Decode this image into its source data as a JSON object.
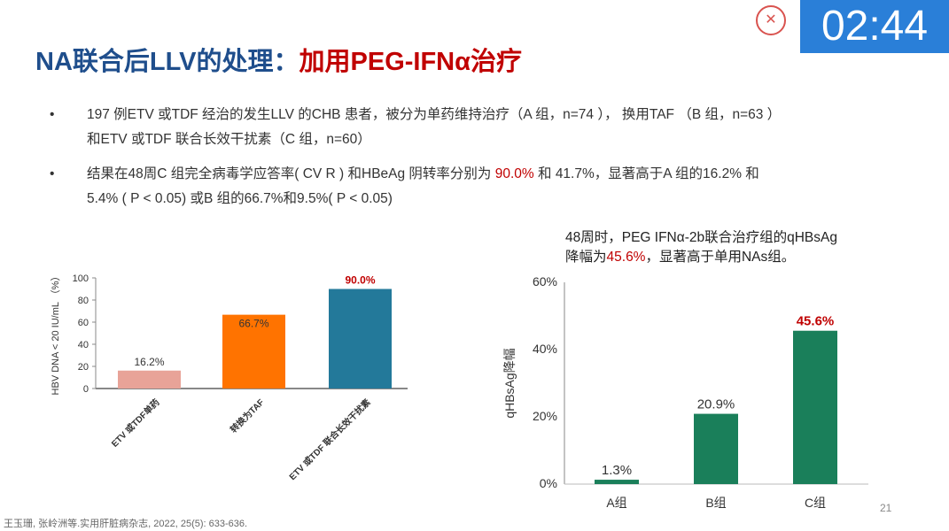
{
  "timer": "02:44",
  "title": {
    "main": "NA联合后LLV的处理：",
    "highlight": "加用PEG-IFNα治疗"
  },
  "bullets": [
    {
      "line1": "197 例ETV 或TDF 经治的发生LLV 的CHB 患者，被分为单药维持治疗（A 组，n=74 ），  换用TAF  （B 组，n=63 ）",
      "line2": "和ETV 或TDF 联合长效干扰素（C 组，n=60）"
    },
    {
      "pre": "结果在48周C 组完全病毒学应答率( CV R ) 和HBeAg 阴转率分别为 ",
      "hl": "90.0%",
      "post": " 和 41.7%，显著高于A 组的16.2% 和",
      "line2": "5.4% ( P < 0.05) 或B 组的66.7%和9.5%( P < 0.05)"
    }
  ],
  "note": {
    "line1": "48周时，PEG IFNα-2b联合治疗组的qHBsAg",
    "pre": "降幅为",
    "hl": "45.6%",
    "post": "，显著高于单用NAs组。"
  },
  "footnote": "王玉珊, 张岭洲等.实用肝脏病杂志, 2022, 25(5): 633-636.",
  "page_number": "21",
  "chart_data": [
    {
      "type": "bar",
      "ylabel": "HBV DNA < 20 IU/mL （%）",
      "ylim": [
        0,
        100
      ],
      "yticks": [
        "0",
        "20",
        "40",
        "60",
        "80",
        "100"
      ],
      "categories": [
        "ETV 或TDF单药",
        "转换为TAF",
        "ETV 或TDF 联合长效干扰素"
      ],
      "values": [
        16.2,
        66.7,
        90.0
      ],
      "data_labels": [
        "16.2%",
        "66.7%",
        "90.0%"
      ],
      "colors": [
        "#e8a398",
        "#ff7300",
        "#23799a"
      ],
      "label_colors": [
        "#333333",
        "#333333",
        "#c00000"
      ]
    },
    {
      "type": "bar",
      "ylabel": "qHBsAg降幅",
      "ylim": [
        0,
        60
      ],
      "yticks": [
        "0%",
        "20%",
        "40%",
        "60%"
      ],
      "categories": [
        "A组",
        "B组",
        "C组"
      ],
      "values": [
        1.3,
        20.9,
        45.6
      ],
      "data_labels": [
        "1.3%",
        "20.9%",
        "45.6%"
      ],
      "colors": [
        "#1a7f5a",
        "#1a7f5a",
        "#1a7f5a"
      ],
      "label_colors": [
        "#333333",
        "#333333",
        "#c00000"
      ]
    }
  ]
}
